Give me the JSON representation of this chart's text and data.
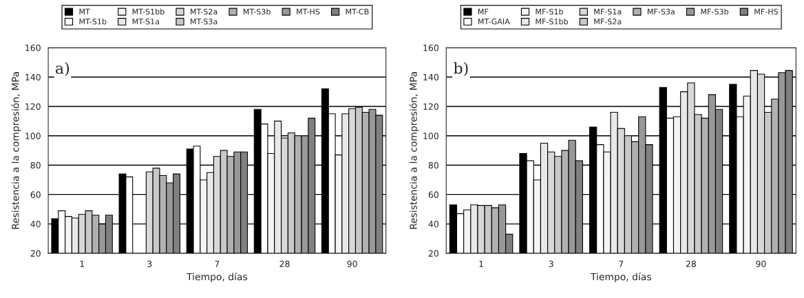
{
  "chart_data": [
    {
      "type": "bar",
      "annotations": [
        "a)"
      ],
      "xlabel": "Tiempo, días",
      "ylabel": "Resistencia a la compresión, MPa",
      "categories": [
        "1",
        "3",
        "7",
        "28",
        "90"
      ],
      "ylim": [
        20,
        160
      ],
      "yticks": [
        20,
        40,
        60,
        80,
        100,
        120,
        140,
        160
      ],
      "grid": "y",
      "legend": "top",
      "series": [
        {
          "name": "MT",
          "color": "#000000",
          "values": [
            43.5,
            74,
            91,
            118,
            132
          ]
        },
        {
          "name": "MT-S1b",
          "color": "#ffffff",
          "values": [
            49,
            72,
            93,
            108,
            115
          ]
        },
        {
          "name": "MT-S1bb",
          "color": "#f4f4f4",
          "values": [
            45,
            null,
            70,
            88,
            87
          ]
        },
        {
          "name": "MT-S1a",
          "color": "#e8e8e8",
          "values": [
            44,
            null,
            75,
            110,
            115
          ]
        },
        {
          "name": "MT-S2a",
          "color": "#d8d8d8",
          "values": [
            46.5,
            75.5,
            86,
            98.5,
            118.5
          ]
        },
        {
          "name": "MT-S3a",
          "color": "#c8c8c8",
          "values": [
            49,
            78,
            90,
            102,
            119.5
          ]
        },
        {
          "name": "MT-S3b",
          "color": "#b0b0b0",
          "values": [
            46,
            73,
            86,
            100,
            116
          ]
        },
        {
          "name": "MT-HS",
          "color": "#989898",
          "values": [
            40,
            68,
            89,
            100,
            118
          ]
        },
        {
          "name": "MT-CB",
          "color": "#808080",
          "values": [
            46,
            74,
            89,
            112,
            114
          ]
        }
      ]
    },
    {
      "type": "bar",
      "annotations": [
        "b)"
      ],
      "xlabel": "Tiempo, días",
      "ylabel": "Resistencia a la compresión, MPa",
      "categories": [
        "1",
        "3",
        "7",
        "28",
        "90"
      ],
      "ylim": [
        20,
        160
      ],
      "yticks": [
        20,
        40,
        60,
        80,
        100,
        120,
        140,
        160
      ],
      "grid": "y",
      "legend": "top",
      "series": [
        {
          "name": "MF",
          "color": "#000000",
          "values": [
            53,
            88,
            106,
            133,
            135
          ]
        },
        {
          "name": "MT-GAIA",
          "color": "#ffffff",
          "values": [
            47,
            83,
            94,
            112,
            113
          ]
        },
        {
          "name": "MF-S1b",
          "color": "#f4f4f4",
          "values": [
            49.5,
            70,
            89,
            113,
            127
          ]
        },
        {
          "name": "MF-S1bb",
          "color": "#e8e8e8",
          "values": [
            53,
            95,
            116,
            130,
            144.5
          ]
        },
        {
          "name": "MF-S1a",
          "color": "#d8d8d8",
          "values": [
            52.5,
            89,
            105,
            136,
            142
          ]
        },
        {
          "name": "MF-S2a",
          "color": "#c8c8c8",
          "values": [
            52.5,
            86,
            100,
            114.5,
            116
          ]
        },
        {
          "name": "MF-S3a",
          "color": "#b0b0b0",
          "values": [
            51,
            90,
            96,
            112,
            125
          ]
        },
        {
          "name": "MF-S3b",
          "color": "#989898",
          "values": [
            53,
            97,
            113,
            128,
            143
          ]
        },
        {
          "name": "MF-HS",
          "color": "#808080",
          "values": [
            33,
            83,
            94,
            118,
            144.5
          ]
        }
      ]
    }
  ]
}
